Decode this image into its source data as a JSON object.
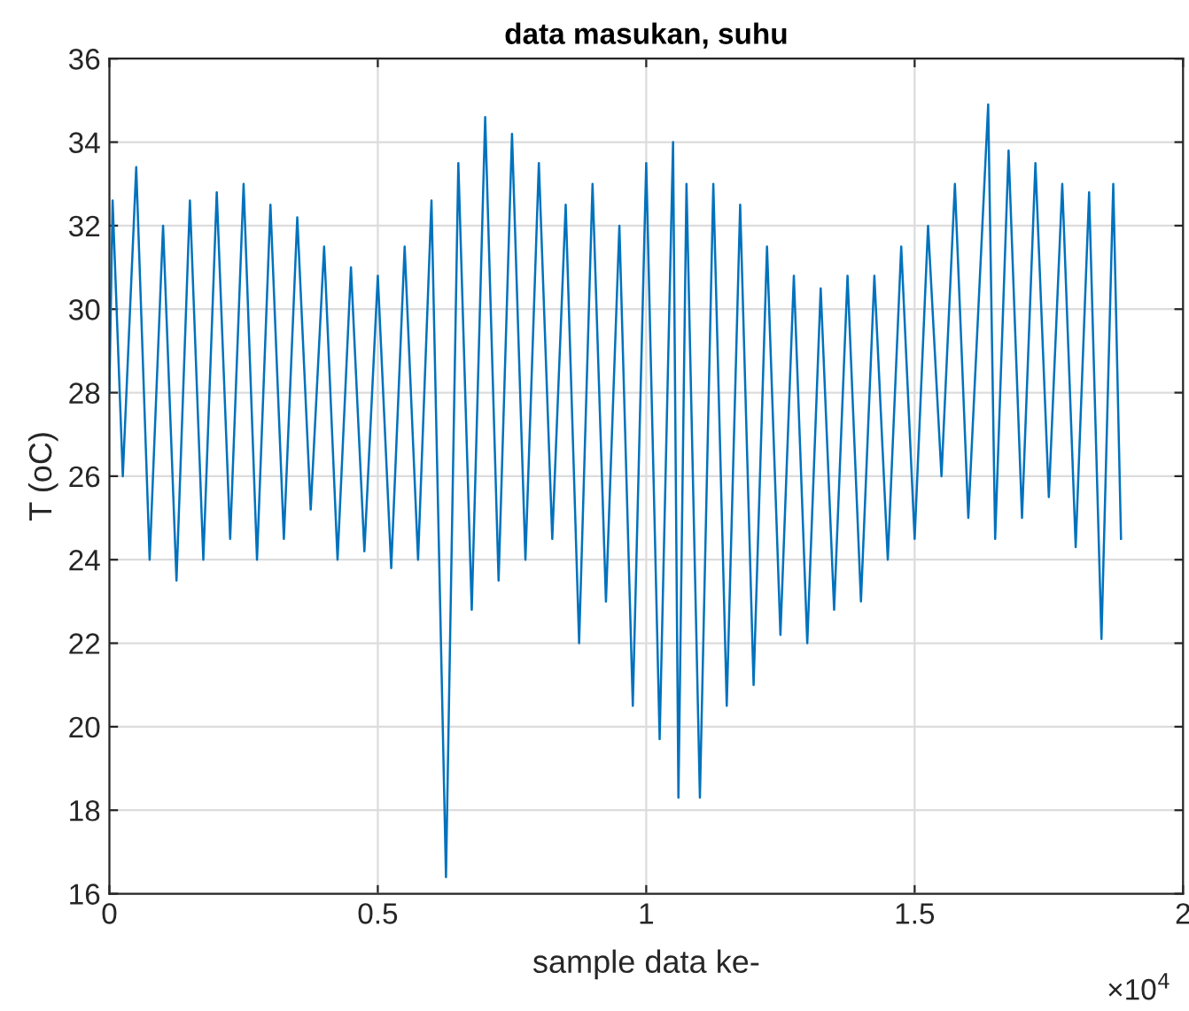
{
  "chart_data": {
    "type": "line",
    "title": "data masukan, suhu",
    "xlabel": "sample data ke-",
    "ylabel": "T (oC)",
    "annotations": [
      "×10$^{4}$"
    ],
    "x": [
      0,
      0.006,
      0.025,
      0.05,
      0.075,
      0.1,
      0.125,
      0.15,
      0.175,
      0.2,
      0.225,
      0.25,
      0.275,
      0.3,
      0.325,
      0.35,
      0.375,
      0.4,
      0.425,
      0.45,
      0.475,
      0.5,
      0.525,
      0.55,
      0.575,
      0.6,
      0.627,
      0.65,
      0.675,
      0.7,
      0.725,
      0.75,
      0.775,
      0.8,
      0.825,
      0.85,
      0.875,
      0.9,
      0.925,
      0.95,
      0.975,
      1.0,
      1.025,
      1.05,
      1.06,
      1.075,
      1.1,
      1.125,
      1.15,
      1.175,
      1.2,
      1.225,
      1.25,
      1.275,
      1.3,
      1.325,
      1.35,
      1.375,
      1.4,
      1.425,
      1.45,
      1.475,
      1.5,
      1.525,
      1.55,
      1.575,
      1.6,
      1.637,
      1.65,
      1.675,
      1.7,
      1.725,
      1.75,
      1.775,
      1.8,
      1.825,
      1.848,
      1.87,
      1.8844
    ],
    "series": [
      {
        "color": "#0072bd",
        "values": [
          28,
          32.6,
          26.0,
          33.4,
          24.0,
          32.0,
          23.5,
          32.6,
          24.0,
          32.8,
          24.5,
          33.0,
          24.0,
          32.5,
          24.5,
          32.2,
          25.2,
          31.5,
          24.0,
          31.0,
          24.2,
          30.8,
          23.8,
          31.5,
          24.0,
          32.6,
          16.4,
          33.5,
          22.8,
          34.6,
          23.5,
          34.2,
          24.0,
          33.5,
          24.5,
          32.5,
          22.0,
          33.0,
          23.0,
          32.0,
          20.5,
          33.5,
          19.7,
          34.0,
          18.3,
          33.0,
          18.3,
          33.0,
          20.5,
          32.5,
          21.0,
          31.5,
          22.2,
          30.8,
          22.0,
          30.5,
          22.8,
          30.8,
          23.0,
          30.8,
          24.0,
          31.5,
          24.5,
          32.0,
          26.0,
          33.0,
          25.0,
          34.9,
          24.5,
          33.8,
          25.0,
          33.5,
          25.5,
          33.0,
          24.3,
          32.8,
          22.1,
          33.0,
          24.5
        ]
      }
    ],
    "xlim": [
      0,
      2
    ],
    "xticks": [
      0,
      0.5,
      1,
      1.5,
      2
    ],
    "ylim": [
      16,
      36
    ],
    "yticks": [
      16,
      18,
      20,
      22,
      24,
      26,
      28,
      30,
      32,
      34,
      36
    ],
    "grid": true,
    "legend": false,
    "marker": "none",
    "line_style": "solid"
  }
}
